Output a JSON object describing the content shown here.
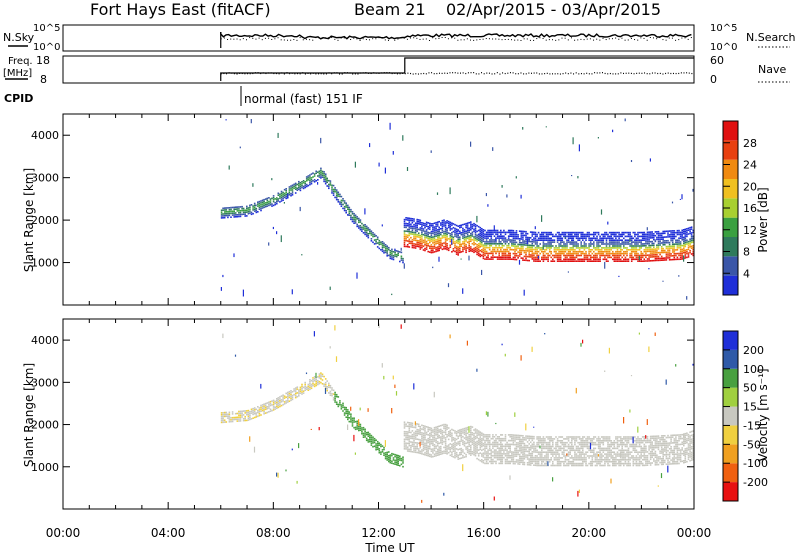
{
  "header": {
    "station": "Fort Hays East (fitACF)",
    "beam": "Beam 21",
    "dates": "02/Apr/2015 - 03/Apr/2015"
  },
  "panels": {
    "nsky": {
      "label": "N.Sky",
      "left_ticks": [
        "10^5",
        "10^0"
      ],
      "right_ticks": [
        "10^5",
        "10^0"
      ],
      "right_label": "N.Search"
    },
    "freq": {
      "label_line1": "Freq.",
      "label_line2": "[MHz]",
      "left_ticks": [
        "18",
        "8"
      ],
      "right_ticks": [
        "60",
        "0"
      ],
      "right_label": "Nave"
    },
    "cpid": {
      "label": "CPID",
      "mode": "normal (fast) 151 IF"
    }
  },
  "colors": {
    "power_scale": [
      "#1f2fd8",
      "#3a56a8",
      "#2f7a5c",
      "#3aa040",
      "#a8d030",
      "#f0c020",
      "#f08a10",
      "#e84010",
      "#e01010"
    ],
    "velocity_scale": [
      "#e81010",
      "#f06010",
      "#f0a020",
      "#f0d040",
      "#c8c8c0",
      "#a0d040",
      "#48a040",
      "#2f5aa8",
      "#1f2fd8"
    ]
  },
  "chart_data": [
    {
      "type": "heatmap",
      "title": "",
      "xlabel": "Time UT",
      "ylabel": "Slant Range [km]",
      "x_range_hours": [
        0,
        24
      ],
      "x_ticks": [
        "00:00",
        "04:00",
        "08:00",
        "12:00",
        "16:00",
        "20:00",
        "00:00"
      ],
      "ylim": [
        0,
        4500
      ],
      "y_ticks": [
        1000,
        2000,
        3000,
        4000
      ],
      "colorbar": {
        "label": "Power [dB]",
        "range": [
          0,
          32
        ],
        "ticks": [
          4,
          8,
          12,
          16,
          20,
          24,
          28
        ]
      },
      "data_start_hour": 6.0,
      "series": [
        {
          "hours": [
            6.0,
            7.0,
            8.0,
            9.0,
            9.8,
            10.3,
            11.0,
            11.8,
            12.4,
            12.9
          ],
          "range_km": [
            2200,
            2250,
            2500,
            2850,
            3150,
            2700,
            2100,
            1600,
            1250,
            1150
          ]
        },
        {
          "hours": [
            13.0,
            13.5,
            14.0,
            14.5,
            15.0,
            15.5,
            16.0,
            17.0,
            18.0,
            20.0,
            22.0,
            23.5,
            24.0
          ],
          "range_km": [
            1750,
            1700,
            1600,
            1700,
            1550,
            1650,
            1450,
            1450,
            1400,
            1400,
            1400,
            1450,
            1550
          ]
        }
      ]
    },
    {
      "type": "heatmap",
      "title": "",
      "xlabel": "Time UT",
      "ylabel": "Slant Range [km]",
      "x_range_hours": [
        0,
        24
      ],
      "x_ticks": [
        "00:00",
        "04:00",
        "08:00",
        "12:00",
        "16:00",
        "20:00",
        "00:00"
      ],
      "ylim": [
        0,
        4500
      ],
      "y_ticks": [
        1000,
        2000,
        3000,
        4000
      ],
      "colorbar": {
        "label": "Velocity [m s⁻¹]",
        "range": [
          -250,
          250
        ],
        "ticks": [
          "200",
          "100",
          "50",
          "15",
          "-15",
          "-50",
          "-100",
          "-200"
        ]
      },
      "data_start_hour": 6.0
    }
  ]
}
